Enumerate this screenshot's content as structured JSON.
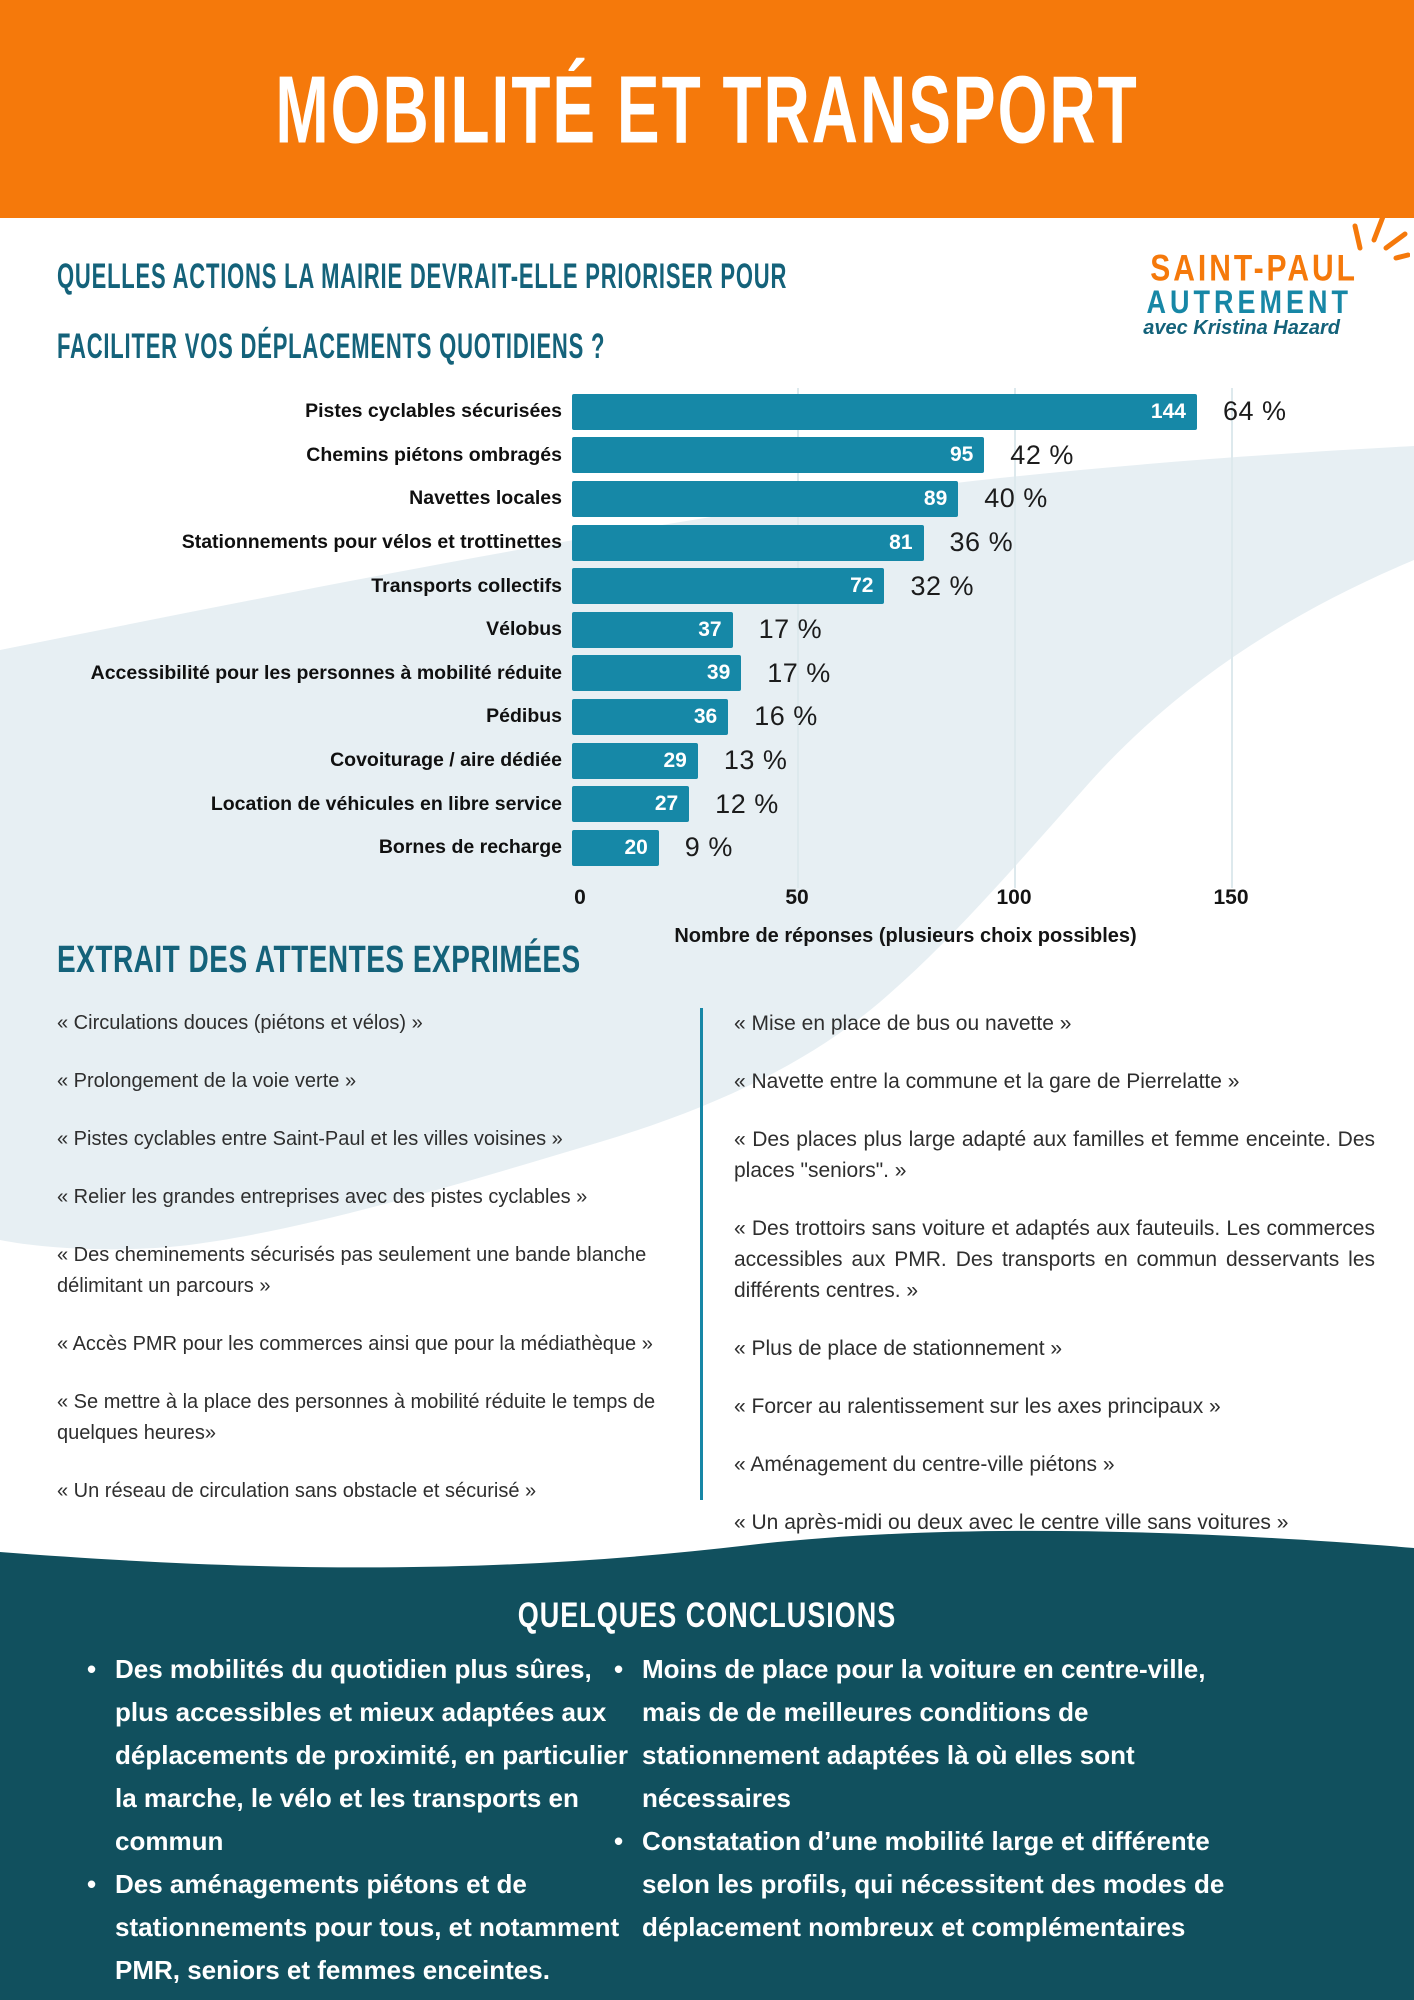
{
  "header": {
    "title": "MOBILITÉ ET TRANSPORT"
  },
  "question": {
    "line1": "QUELLES ACTIONS LA MAIRIE DEVRAIT-ELLE PRIORISER POUR",
    "line2": "FACILITER VOS DÉPLACEMENTS QUOTIDIENS ?"
  },
  "logo": {
    "name_line1": "SAINT-PAUL",
    "name_line2": "AUTREMENT",
    "tagline": "avec Kristina Hazard"
  },
  "chart_data": {
    "type": "bar",
    "orientation": "horizontal",
    "categories": [
      "Pistes cyclables sécurisées",
      "Chemins piétons ombragés",
      "Navettes locales",
      "Stationnements pour vélos et trottinettes",
      "Transports collectifs",
      "Vélobus",
      "Accessibilité pour les personnes à mobilité réduite",
      "Pédibus",
      "Covoiturage / aire dédiée",
      "Location de véhicules en libre service",
      "Bornes de recharge"
    ],
    "values": [
      144,
      95,
      89,
      81,
      72,
      37,
      39,
      36,
      29,
      27,
      20
    ],
    "pct_labels": [
      "64 %",
      "42 %",
      "40 %",
      "36 %",
      "32 %",
      "17 %",
      "17 %",
      "16 %",
      "13 %",
      "12 %",
      "9 %"
    ],
    "xlabel": "Nombre de réponses (plusieurs choix possibles)",
    "x_ticks": [
      0,
      50,
      100,
      150
    ],
    "xlim": [
      0,
      160
    ],
    "grid": true,
    "legend": false,
    "bar_color": "#1688A7"
  },
  "quotes_section": {
    "title": "EXTRAIT DES ATTENTES EXPRIMÉES",
    "left": [
      "« Circulations douces (piétons et vélos) »",
      "« Prolongement de la voie verte »",
      "« Pistes cyclables entre Saint-Paul et les villes voisines »",
      "« Relier les grandes entreprises avec des pistes cyclables »",
      "« Des cheminements sécurisés pas seulement une bande blanche délimitant un parcours »",
      "« Accès PMR pour les commerces ainsi que pour la médiathèque »",
      "« Se mettre à la place des personnes à mobilité réduite le temps de quelques heures»",
      "« Un réseau de circulation sans obstacle et sécurisé »"
    ],
    "right": [
      "« Mise en place de bus ou navette »",
      "« Navette entre la commune et la gare de Pierrelatte »",
      "« Des places plus large adapté aux familles et femme enceinte. Des places \"seniors\". »",
      "« Des trottoirs sans voiture et adaptés aux fauteuils. Les commerces accessibles aux PMR.  Des transports en commun desservants les différents centres. »",
      "« Plus de place de stationnement »",
      "« Forcer au ralentissement sur les axes principaux »",
      "« Aménagement du centre-ville piétons »",
      "« Un après-midi ou deux avec le centre ville sans voitures »"
    ]
  },
  "conclusions": {
    "title": "QUELQUES CONCLUSIONS",
    "left": [
      "Des mobilités du quotidien plus sûres, plus accessibles et mieux adaptées aux déplacements de proximité, en particulier la marche, le vélo et les transports en commun",
      "Des aménagements piétons et de stationnements pour tous, et notamment PMR, seniors et femmes enceintes."
    ],
    "right": [
      "Moins de place pour la voiture en centre-ville, mais de de meilleures conditions de stationnement adaptées là où elles sont nécessaires",
      "Constatation d’une mobilité large et différente selon les profils, qui nécessitent des modes de déplacement nombreux et complémentaires"
    ]
  },
  "colors": {
    "header_orange": "#F5790B",
    "headline_teal": "#14627A",
    "bar_teal": "#1688A7",
    "footer_teal": "#11505E",
    "background_blob": "#E7EFF3",
    "divider_teal": "#1787A6",
    "grid_line": "#DDE9ED",
    "quote_text": "#2E2E2E",
    "logo_orange": "#F5790B",
    "logo_teal": "#1787A6"
  }
}
